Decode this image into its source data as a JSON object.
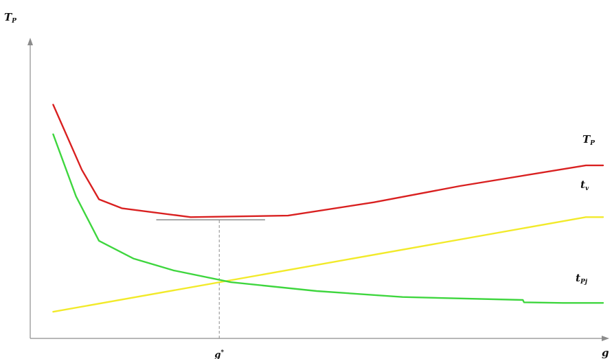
{
  "chart_data": {
    "type": "line",
    "axes": {
      "y_label": "T",
      "y_label_sub": "P",
      "x_label": "g",
      "x_marker_label": "g",
      "x_marker_sup": "*"
    },
    "xlim": [
      0,
      100
    ],
    "ylim": [
      0,
      100
    ],
    "grid": false,
    "legend": "none",
    "g_star": 33,
    "series": [
      {
        "name": "T",
        "name_sub": "P",
        "color": "#d92020",
        "x": [
          4,
          9,
          12,
          16,
          28,
          45,
          60,
          75,
          97,
          100
        ],
        "y": [
          79,
          57,
          47,
          44,
          41,
          41.5,
          46,
          51.5,
          58.5,
          58.5
        ]
      },
      {
        "name": "t",
        "name_sub": "v",
        "color": "#f2ea2a",
        "x": [
          4,
          97,
          100
        ],
        "y": [
          9,
          41,
          41
        ]
      },
      {
        "name": "t",
        "name_sub": "Pj",
        "color": "#3ed63e",
        "x": [
          4,
          8,
          12,
          18,
          25,
          35,
          50,
          65,
          86,
          86.2,
          93,
          100
        ],
        "y": [
          69,
          48,
          33,
          27,
          23,
          19,
          16,
          14,
          13,
          12.2,
          12,
          12
        ]
      }
    ]
  }
}
